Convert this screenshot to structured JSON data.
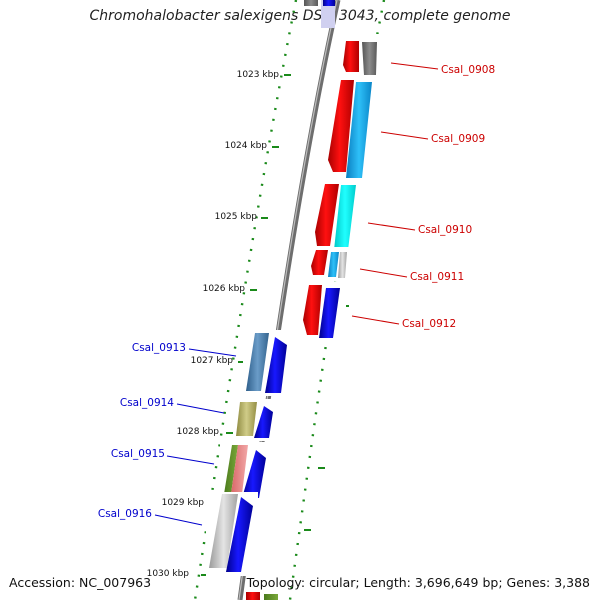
{
  "title": "Chromohalobacter salexigens DSM 3043, complete genome",
  "footer": {
    "accession": "Accession: NC_007963",
    "stats": "Topology: circular; Length: 3,696,649 bp; Genes: 3,388"
  },
  "colors": {
    "ruler": "#1a8a1a",
    "backbone": "#7a7a7a",
    "label_right": "#cc0000",
    "label_left": "#0000cc"
  },
  "ruler_labels": [
    "1023 kbp",
    "1024 kbp",
    "1025 kbp",
    "1026 kbp",
    "1027 kbp",
    "1028 kbp",
    "1029 kbp",
    "1030 kbp"
  ],
  "genes": [
    {
      "name": "Csal_0908",
      "side": "right",
      "label_color": "#cc0000"
    },
    {
      "name": "Csal_0909",
      "side": "right",
      "label_color": "#cc0000"
    },
    {
      "name": "Csal_0910",
      "side": "right",
      "label_color": "#cc0000"
    },
    {
      "name": "Csal_0911",
      "side": "right",
      "label_color": "#cc0000"
    },
    {
      "name": "Csal_0912",
      "side": "right",
      "label_color": "#cc0000"
    },
    {
      "name": "Csal_0913",
      "side": "left",
      "label_color": "#0000cc"
    },
    {
      "name": "Csal_0914",
      "side": "left",
      "label_color": "#0000cc"
    },
    {
      "name": "Csal_0915",
      "side": "left",
      "label_color": "#0000cc"
    },
    {
      "name": "Csal_0916",
      "side": "left",
      "label_color": "#0000cc"
    }
  ]
}
